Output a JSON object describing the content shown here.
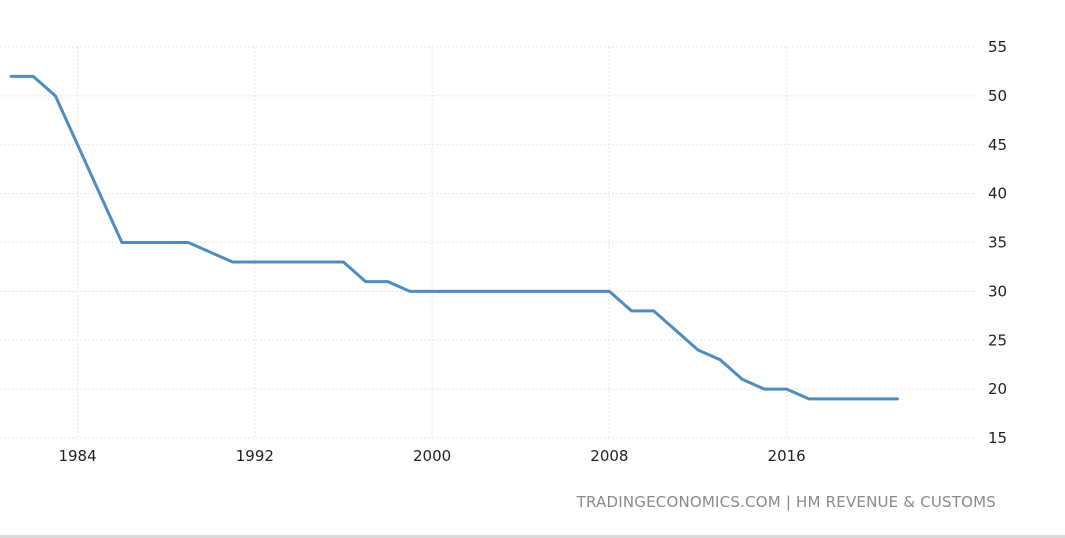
{
  "source_text": "TRADINGECONOMICS.COM | HM REVENUE & CUSTOMS",
  "colors": {
    "line": "#4f8cc1",
    "grid": "#e6e6e6",
    "tick_text": "#222222",
    "source_text": "#8a8a8a"
  },
  "chart_data": {
    "type": "line",
    "title": "",
    "xlabel": "",
    "ylabel": "",
    "xlim": [
      1980.5,
      2024.5
    ],
    "ylim": [
      15,
      55
    ],
    "x_ticks": [
      1984,
      1992,
      2000,
      2008,
      2016
    ],
    "y_ticks": [
      15,
      20,
      25,
      30,
      35,
      40,
      45,
      50,
      55
    ],
    "y_axis_position": "right",
    "grid": true,
    "series": [
      {
        "points": [
          [
            1981,
            52
          ],
          [
            1982,
            52
          ],
          [
            1983,
            50
          ],
          [
            1986,
            35
          ],
          [
            1989,
            35
          ],
          [
            1991,
            33
          ],
          [
            1996,
            33
          ],
          [
            1997,
            31
          ],
          [
            1998,
            31
          ],
          [
            1999,
            30
          ],
          [
            2008,
            30
          ],
          [
            2009,
            28
          ],
          [
            2010,
            28
          ],
          [
            2012,
            24
          ],
          [
            2013,
            23
          ],
          [
            2014,
            21
          ],
          [
            2015,
            20
          ],
          [
            2016,
            20
          ],
          [
            2017,
            19
          ],
          [
            2021,
            19
          ]
        ]
      }
    ]
  }
}
